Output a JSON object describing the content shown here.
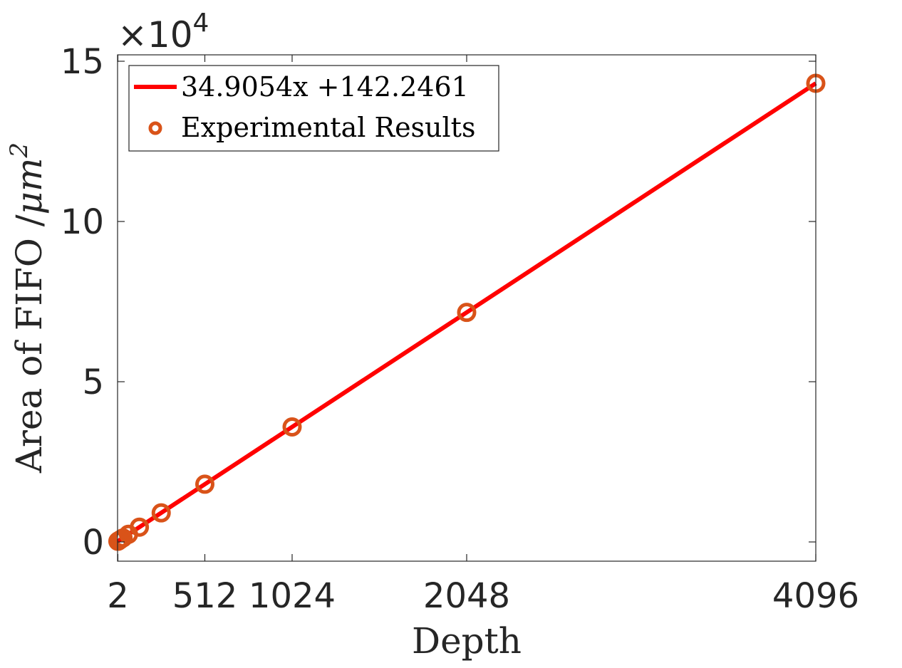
{
  "chart_data": {
    "type": "scatter",
    "xlabel": "Depth",
    "ylabel": "Area of FIFO /μm²",
    "ylabel_parts": {
      "main": "Area of FIFO /",
      "unit": "μm",
      "sup": "2"
    },
    "y_exponent": {
      "base": "×10",
      "power": "4"
    },
    "xlim": [
      0,
      4096
    ],
    "ylim": [
      -6000,
      152000
    ],
    "xticks": [
      2,
      512,
      1024,
      2048,
      4096
    ],
    "xtick_labels": [
      "2",
      "512",
      "1024",
      "2048",
      "4096"
    ],
    "yticks": [
      0,
      50000,
      100000,
      150000
    ],
    "ytick_labels": [
      "0",
      "5",
      "10",
      "15"
    ],
    "series": [
      {
        "name": "34.9054x +142.2461",
        "kind": "line",
        "slope": 34.9054,
        "intercept": 142.2461,
        "x": [
          2,
          4096
        ],
        "color": "#ff0000"
      },
      {
        "name": "Experimental Results",
        "kind": "scatter",
        "x": [
          2,
          4,
          8,
          16,
          32,
          64,
          128,
          256,
          512,
          1024,
          2048,
          4096
        ],
        "y": [
          212,
          282,
          421,
          700,
          1259,
          2376,
          4610,
          9078,
          18014,
          35886,
          71631,
          143121
        ],
        "color": "#d95319"
      }
    ],
    "legend": {
      "placement": "top-left"
    },
    "grid": false
  }
}
